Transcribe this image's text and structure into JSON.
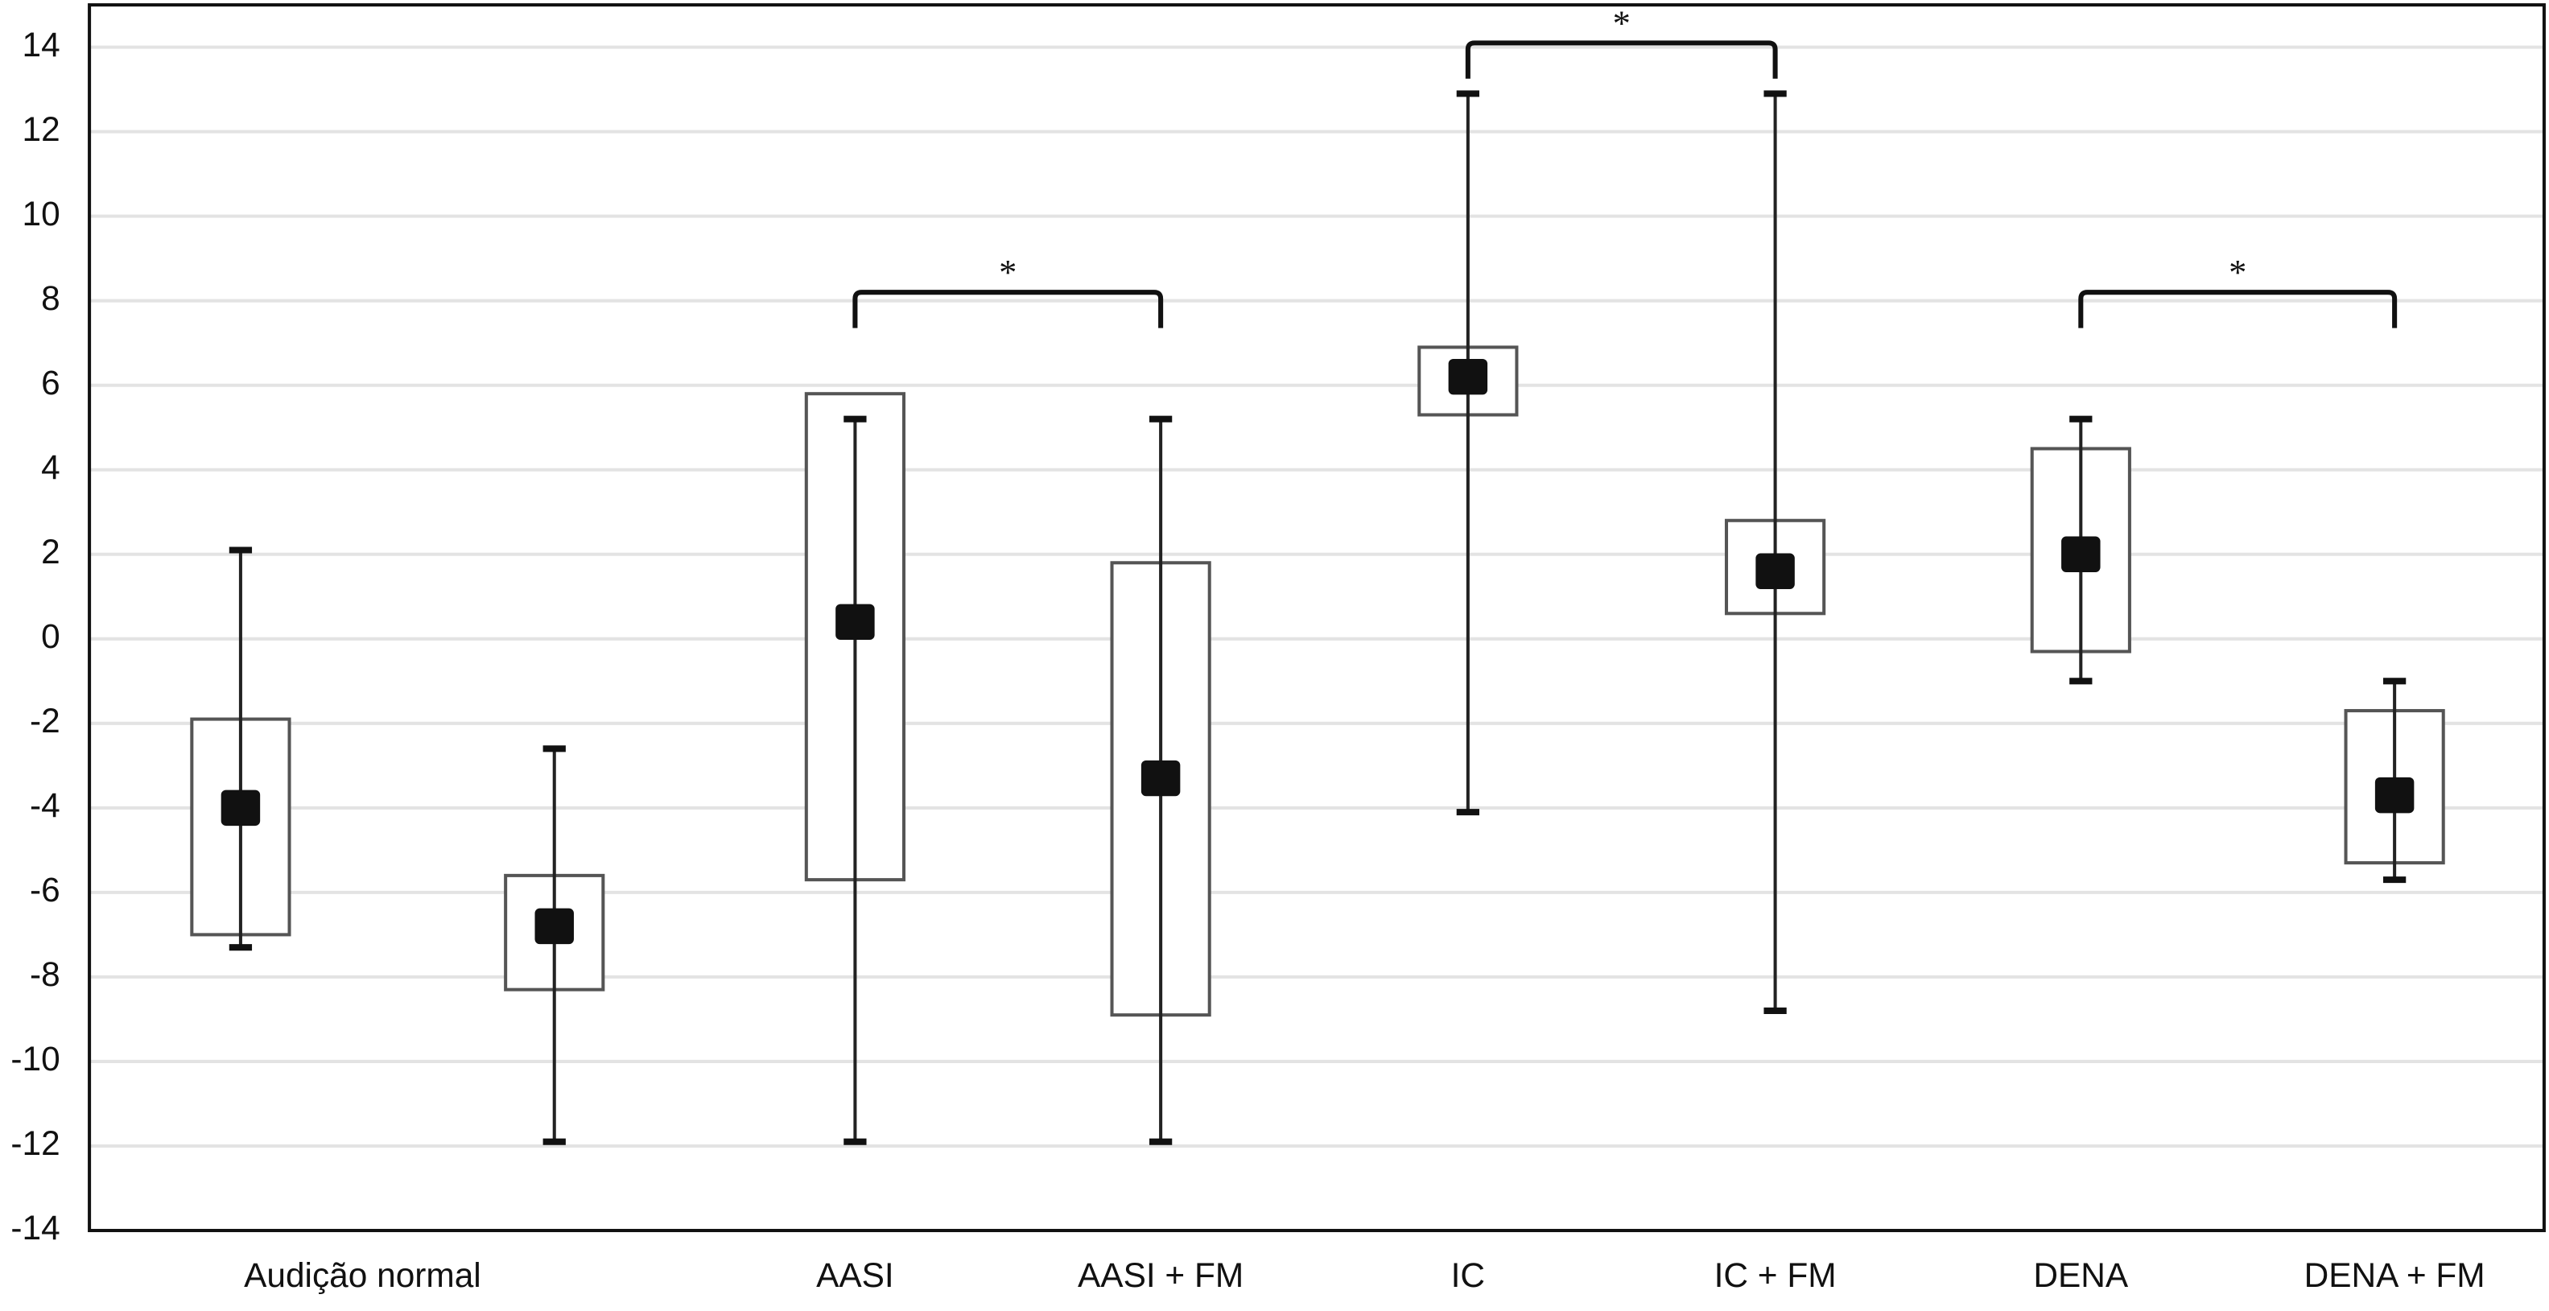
{
  "chart_data": {
    "type": "box",
    "categories": [
      "Audição normal",
      null,
      "AASI",
      "AASI + FM",
      "IC",
      "IC + FM",
      "DENA",
      "DENA + FM"
    ],
    "min": [
      -7.3,
      -11.9,
      -11.9,
      -11.9,
      -4.1,
      -8.8,
      -1.0,
      -5.7
    ],
    "q1": [
      -7.0,
      -8.3,
      -5.7,
      -8.9,
      5.3,
      0.6,
      -0.3,
      -5.3
    ],
    "median": [
      -4.0,
      -6.8,
      0.4,
      -3.3,
      6.2,
      1.6,
      2.0,
      -3.7
    ],
    "q3": [
      -1.9,
      -5.6,
      5.8,
      1.8,
      6.9,
      2.8,
      4.5,
      -1.7
    ],
    "max": [
      2.1,
      -2.6,
      5.2,
      5.2,
      12.9,
      12.9,
      5.2,
      -1.0
    ],
    "box_color": "#555555",
    "median_color": "#111111",
    "annotations": [
      {
        "text": "*",
        "between": [
          2,
          3
        ],
        "y": 8.2
      },
      {
        "text": "*",
        "between": [
          4,
          5
        ],
        "y": 14.1
      },
      {
        "text": "*",
        "between": [
          6,
          7
        ],
        "y": 8.2
      }
    ],
    "ylim": [
      -14,
      14
    ],
    "yticks": [
      -14,
      -12,
      -10,
      -8,
      -6,
      -4,
      -2,
      0,
      2,
      4,
      6,
      8,
      10,
      12,
      14
    ],
    "grid": true
  }
}
